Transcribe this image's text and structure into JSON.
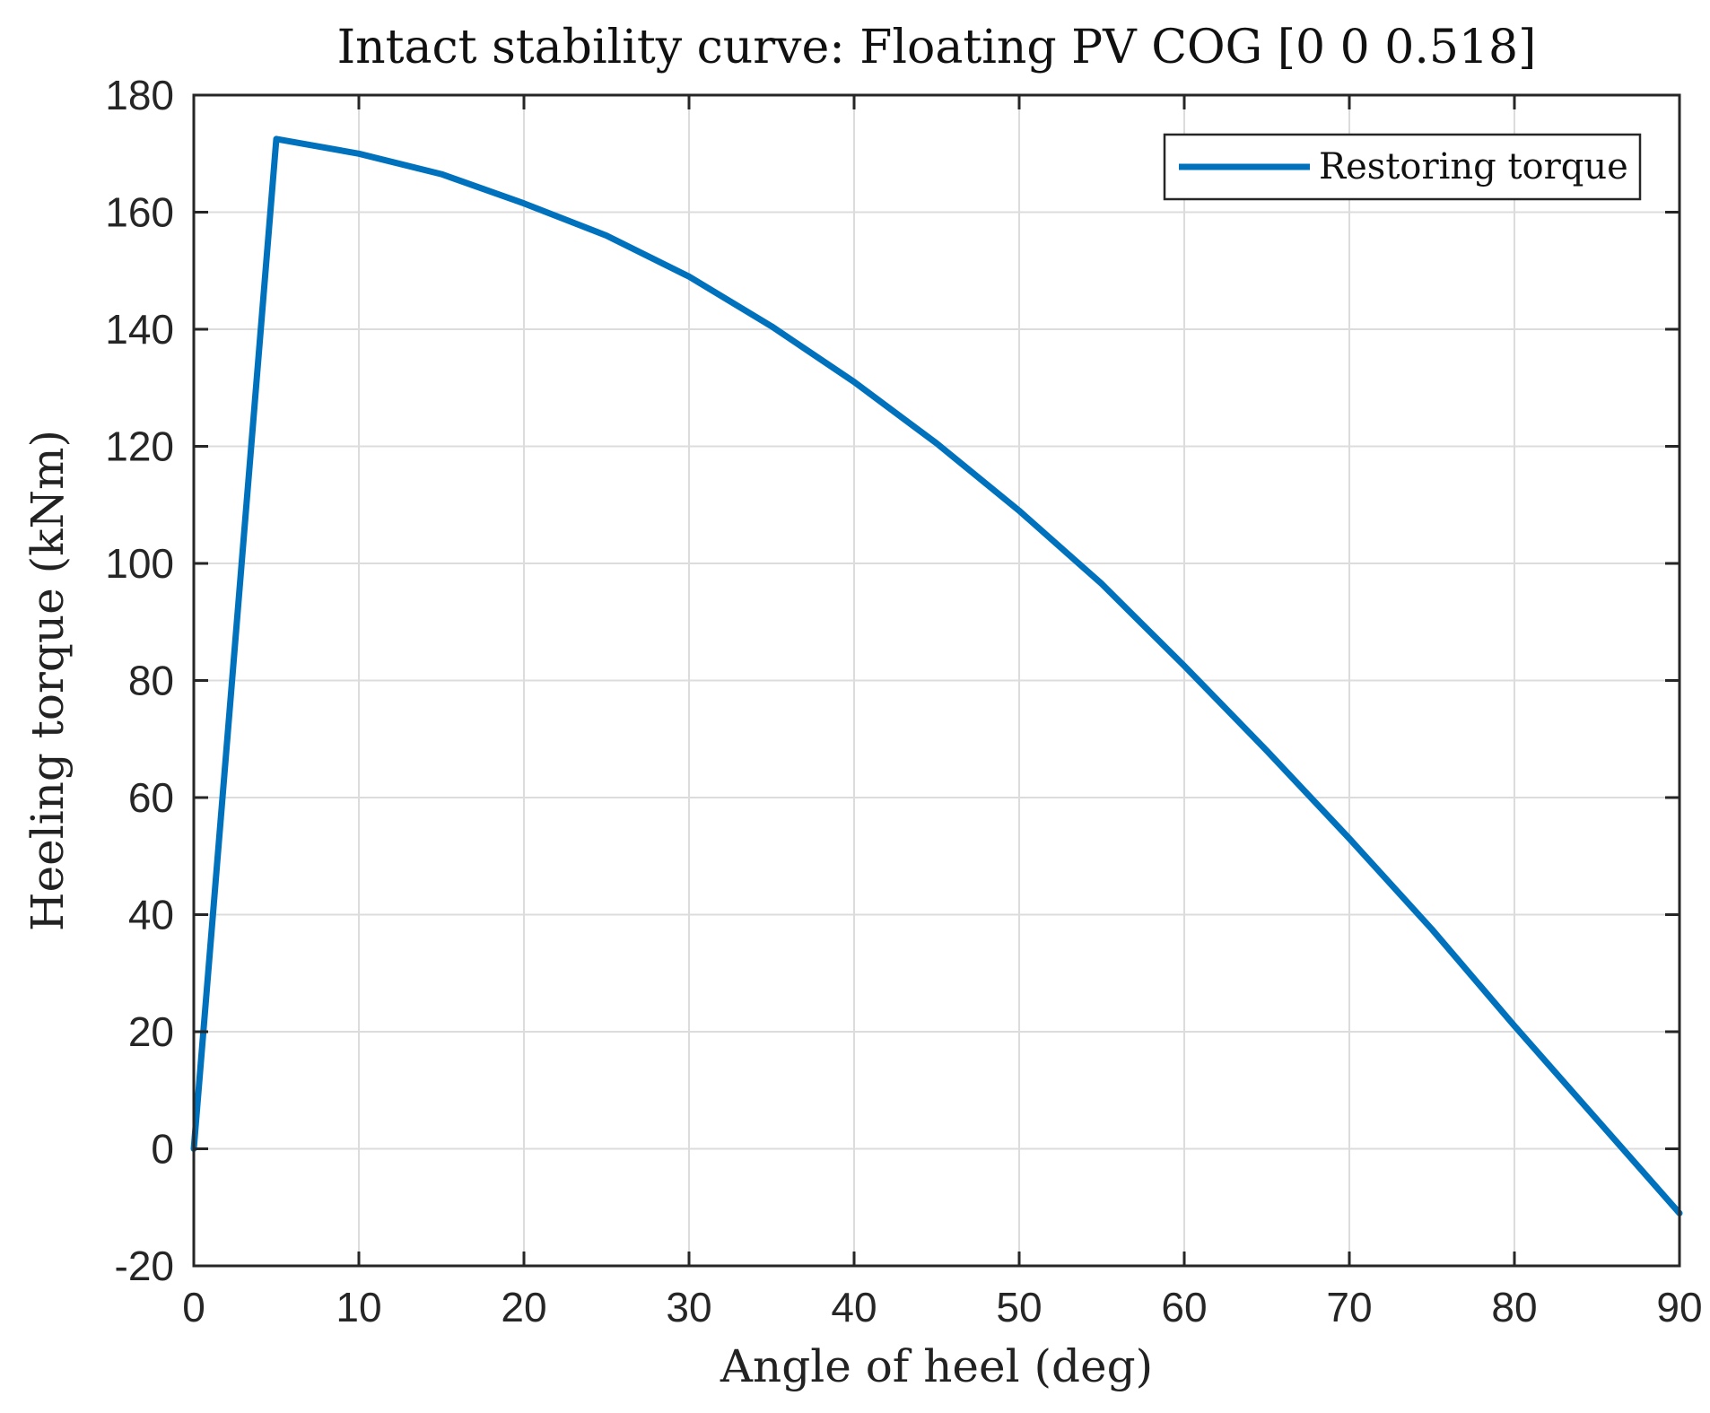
{
  "chart_data": {
    "type": "line",
    "title": "Intact stability curve: Floating PV COG [0 0 0.518]",
    "xlabel": "Angle of heel (deg)",
    "ylabel": "Heeling torque (kNm)",
    "xlim": [
      0,
      90
    ],
    "ylim": [
      -20,
      180
    ],
    "xticks": [
      0,
      10,
      20,
      30,
      40,
      50,
      60,
      70,
      80,
      90
    ],
    "yticks": [
      -20,
      0,
      20,
      40,
      60,
      80,
      100,
      120,
      140,
      160,
      180
    ],
    "grid": true,
    "legend_position": "top-right",
    "series": [
      {
        "name": "Restoring torque",
        "color": "#0072BD",
        "x": [
          0,
          5,
          10,
          15,
          20,
          25,
          30,
          35,
          40,
          45,
          50,
          55,
          60,
          65,
          70,
          75,
          80,
          85,
          90
        ],
        "y": [
          0,
          172.5,
          170,
          166.5,
          161.5,
          156,
          149,
          140.5,
          131,
          120.5,
          109,
          96.5,
          82.5,
          68,
          53,
          37.5,
          21,
          5,
          -11
        ]
      }
    ]
  }
}
